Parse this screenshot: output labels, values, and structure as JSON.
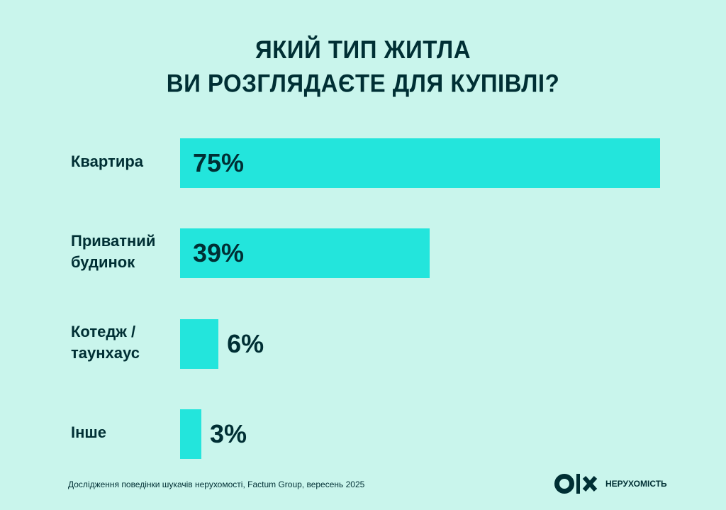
{
  "chart_data": {
    "type": "bar",
    "orientation": "horizontal",
    "title_lines": [
      "ЯКИЙ ТИП ЖИТЛА",
      "ВИ РОЗГЛЯДАЄТЕ ДЛЯ КУПІВЛІ?"
    ],
    "categories": [
      "Квартира",
      "Приватний\nбудинок",
      "Котедж /\nтаунхаус",
      "Інше"
    ],
    "values": [
      75,
      39,
      6,
      3
    ],
    "value_labels": [
      "75%",
      "39%",
      "6%",
      "3%"
    ],
    "xlim": [
      0,
      75
    ],
    "grid": false,
    "colors": {
      "bar": "#23e5dc",
      "background": "#c9f5ec",
      "text": "#002f34"
    }
  },
  "footer": {
    "source": "Дослідження поведінки шукачів нерухомості, Factum Group, вересень 2025"
  },
  "logo": {
    "brand": "OLX",
    "text": "НЕРУХОМІСТЬ"
  }
}
